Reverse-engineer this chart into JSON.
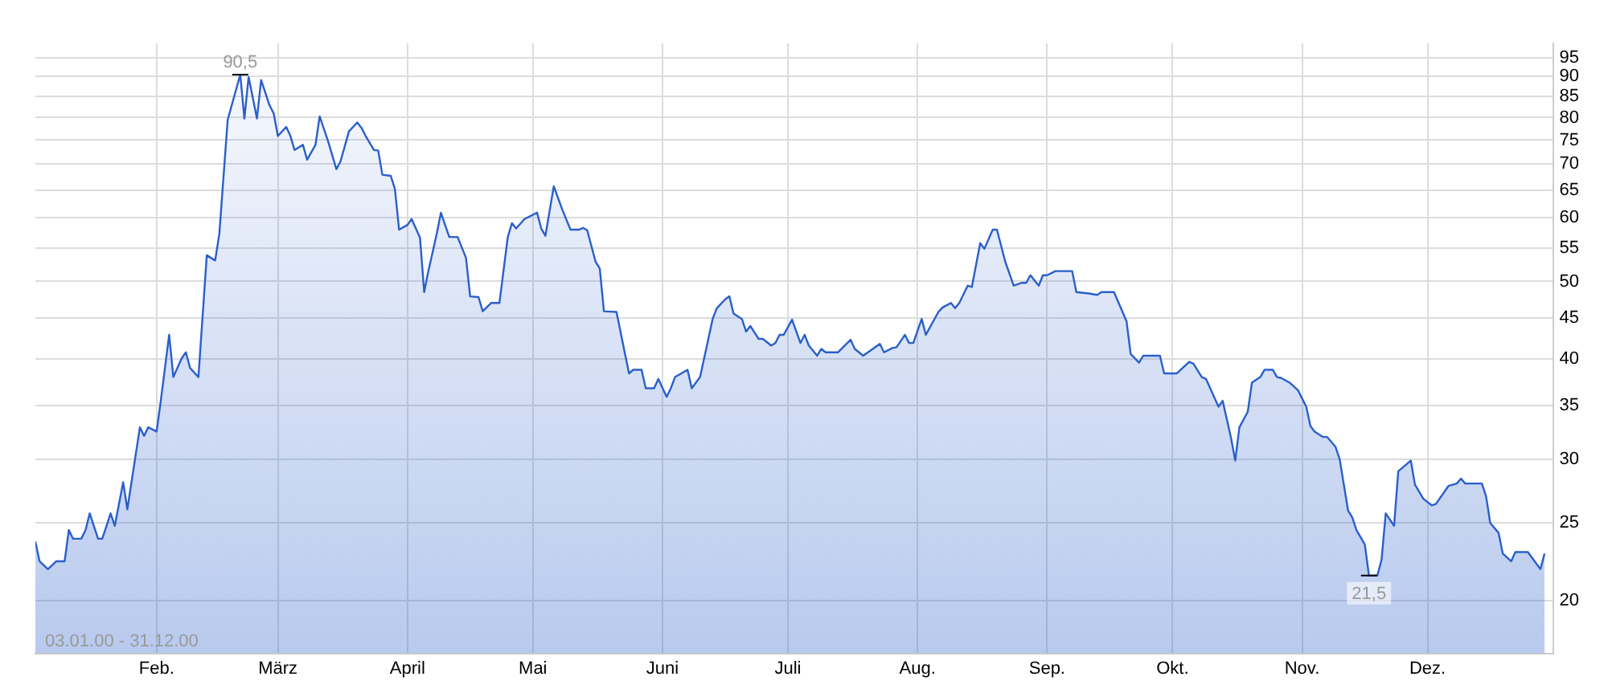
{
  "chart_data": {
    "type": "area",
    "log": "y",
    "grid": true,
    "legend": false,
    "marker": "none",
    "line_style": "solid",
    "xlim": [
      "--01-03",
      "--12-31"
    ],
    "xticks": [
      {
        "value": "--02-01",
        "label": "Feb."
      },
      {
        "value": "--03-01",
        "label": "März"
      },
      {
        "value": "--04-01",
        "label": "April"
      },
      {
        "value": "--05-01",
        "label": "Mai"
      },
      {
        "value": "--06-01",
        "label": "Juni"
      },
      {
        "value": "--07-01",
        "label": "Juli"
      },
      {
        "value": "--08-01",
        "label": "Aug."
      },
      {
        "value": "--09-01",
        "label": "Sep."
      },
      {
        "value": "--10-01",
        "label": "Okt."
      },
      {
        "value": "--11-01",
        "label": "Nov."
      },
      {
        "value": "--12-01",
        "label": "Dez."
      }
    ],
    "ylim": [
      17.2,
      99
    ],
    "yticks": [
      20,
      25,
      30,
      35,
      40,
      45,
      50,
      55,
      60,
      65,
      70,
      75,
      80,
      85,
      90,
      95
    ],
    "annotations": [
      {
        "text": "90,5",
        "x": "--02-21",
        "y": 90.5
      },
      {
        "text": "21,5",
        "x": "--11-17",
        "y": 21.5
      },
      "03.01.00 - 31.12.00"
    ],
    "x": [
      "--01-03",
      "--01-04",
      "--01-06",
      "--01-08",
      "--01-10",
      "--01-11",
      "--01-12",
      "--01-14",
      "--01-15",
      "--01-16",
      "--01-18",
      "--01-19",
      "--01-21",
      "--01-22",
      "--01-24",
      "--01-25",
      "--01-28",
      "--01-29",
      "--01-30",
      "--02-01",
      "--02-02",
      "--02-04",
      "--02-05",
      "--02-07",
      "--02-08",
      "--02-09",
      "--02-11",
      "--02-13",
      "--02-15",
      "--02-16",
      "--02-18",
      "--02-21",
      "--02-22",
      "--02-23",
      "--02-25",
      "--02-26",
      "--02-28",
      "--02-29",
      "--03-01",
      "--03-03",
      "--03-04",
      "--03-05",
      "--03-07",
      "--03-08",
      "--03-10",
      "--03-11",
      "--03-13",
      "--03-15",
      "--03-16",
      "--03-18",
      "--03-20",
      "--03-21",
      "--03-22",
      "--03-24",
      "--03-25",
      "--03-26",
      "--03-28",
      "--03-29",
      "--03-30",
      "--04-01",
      "--04-02",
      "--04-04",
      "--04-05",
      "--04-06",
      "--04-08",
      "--04-09",
      "--04-11",
      "--04-13",
      "--04-15",
      "--04-16",
      "--04-18",
      "--04-19",
      "--04-21",
      "--04-23",
      "--04-25",
      "--04-26",
      "--04-27",
      "--04-29",
      "--05-02",
      "--05-03",
      "--05-04",
      "--05-06",
      "--05-08",
      "--05-10",
      "--05-12",
      "--05-13",
      "--05-14",
      "--05-16",
      "--05-17",
      "--05-18",
      "--05-21",
      "--05-23",
      "--05-24",
      "--05-25",
      "--05-27",
      "--05-28",
      "--05-30",
      "--05-31",
      "--06-02",
      "--06-03",
      "--06-04",
      "--06-07",
      "--06-08",
      "--06-10",
      "--06-13",
      "--06-14",
      "--06-16",
      "--06-17",
      "--06-18",
      "--06-20",
      "--06-21",
      "--06-22",
      "--06-24",
      "--06-25",
      "--06-27",
      "--06-28",
      "--06-29",
      "--06-30",
      "--07-02",
      "--07-04",
      "--07-05",
      "--07-06",
      "--07-08",
      "--07-09",
      "--07-10",
      "--07-13",
      "--07-16",
      "--07-17",
      "--07-19",
      "--07-23",
      "--07-24",
      "--07-26",
      "--07-27",
      "--07-29",
      "--07-30",
      "--07-31",
      "--08-02",
      "--08-03",
      "--08-06",
      "--08-07",
      "--08-09",
      "--08-10",
      "--08-11",
      "--08-13",
      "--08-14",
      "--08-16",
      "--08-17",
      "--08-19",
      "--08-20",
      "--08-22",
      "--08-24",
      "--08-26",
      "--08-27",
      "--08-28",
      "--08-30",
      "--08-31",
      "--09-01",
      "--09-03",
      "--09-07",
      "--09-08",
      "--09-11",
      "--09-13",
      "--09-14",
      "--09-17",
      "--09-20",
      "--09-21",
      "--09-23",
      "--09-24",
      "--09-28",
      "--09-29",
      "--10-02",
      "--10-05",
      "--10-06",
      "--10-08",
      "--10-09",
      "--10-12",
      "--10-13",
      "--10-15",
      "--10-16",
      "--10-17",
      "--10-19",
      "--10-20",
      "--10-22",
      "--10-23",
      "--10-25",
      "--10-26",
      "--10-27",
      "--10-29",
      "--10-31",
      "--11-02",
      "--11-03",
      "--11-04",
      "--11-06",
      "--11-07",
      "--11-09",
      "--11-10",
      "--11-12",
      "--11-13",
      "--11-14",
      "--11-16",
      "--11-17",
      "--11-19",
      "--11-20",
      "--11-21",
      "--11-23",
      "--11-24",
      "--11-27",
      "--11-28",
      "--11-30",
      "--12-02",
      "--12-03",
      "--12-06",
      "--12-08",
      "--12-09",
      "--12-10",
      "--12-14",
      "--12-15",
      "--12-16",
      "--12-18",
      "--12-19",
      "--12-21",
      "--12-22",
      "--12-25",
      "--12-28",
      "--12-29"
    ],
    "series": [
      {
        "color": "#2a5fcb",
        "values": [
          23.7,
          22.4,
          21.9,
          22.4,
          22.4,
          24.5,
          23.9,
          23.9,
          24.5,
          25.7,
          23.9,
          23.9,
          25.7,
          24.8,
          28.1,
          26.0,
          32.9,
          32.1,
          32.9,
          32.5,
          35.5,
          42.9,
          38.0,
          40.1,
          40.8,
          39.0,
          38.0,
          53.9,
          53.1,
          57.3,
          79.5,
          90.5,
          79.8,
          89.9,
          79.8,
          89.1,
          82.9,
          81.0,
          75.9,
          77.9,
          75.9,
          72.9,
          74.0,
          70.9,
          74.0,
          80.3,
          74.8,
          69.0,
          70.6,
          76.9,
          78.9,
          77.7,
          75.9,
          72.9,
          72.8,
          67.9,
          67.7,
          65.2,
          58.0,
          58.8,
          59.8,
          56.7,
          48.5,
          51.5,
          57.3,
          60.9,
          56.8,
          56.8,
          53.5,
          47.9,
          47.8,
          45.9,
          47.0,
          47.0,
          56.8,
          59.1,
          58.2,
          59.8,
          60.9,
          58.2,
          57.0,
          65.7,
          61.5,
          58.0,
          58.0,
          58.3,
          57.9,
          52.9,
          51.9,
          45.9,
          45.8,
          40.7,
          38.4,
          38.8,
          38.8,
          36.8,
          36.8,
          37.8,
          35.9,
          36.8,
          38.0,
          38.8,
          36.8,
          38.0,
          44.9,
          46.3,
          47.5,
          47.9,
          45.6,
          44.9,
          43.3,
          44.0,
          42.4,
          42.4,
          41.6,
          41.9,
          42.9,
          42.9,
          44.8,
          41.9,
          42.9,
          41.6,
          40.4,
          41.2,
          40.8,
          40.8,
          42.3,
          41.2,
          40.4,
          41.8,
          40.8,
          41.3,
          41.4,
          42.9,
          41.9,
          41.9,
          44.9,
          42.9,
          45.8,
          46.4,
          47.0,
          46.3,
          47.0,
          49.4,
          49.2,
          55.8,
          54.9,
          58.0,
          58.0,
          52.9,
          49.4,
          49.8,
          49.8,
          50.9,
          49.4,
          50.9,
          50.9,
          51.5,
          51.5,
          48.5,
          48.3,
          48.1,
          48.5,
          48.5,
          44.6,
          40.6,
          39.6,
          40.4,
          40.4,
          38.4,
          38.4,
          39.7,
          39.5,
          38.0,
          37.8,
          34.9,
          35.5,
          31.9,
          29.9,
          32.9,
          34.4,
          37.4,
          38.0,
          38.8,
          38.8,
          38.0,
          37.9,
          37.4,
          36.6,
          34.9,
          33.0,
          32.5,
          32.0,
          32.0,
          31.1,
          30.0,
          25.9,
          25.4,
          24.5,
          23.5,
          21.5,
          21.5,
          22.5,
          25.7,
          24.8,
          29.0,
          29.9,
          27.9,
          26.8,
          26.3,
          26.4,
          27.8,
          28.0,
          28.4,
          28.0,
          28.0,
          27.0,
          25.0,
          24.3,
          22.9,
          22.4,
          23.0,
          23.0,
          21.9,
          22.9
        ]
      }
    ]
  }
}
